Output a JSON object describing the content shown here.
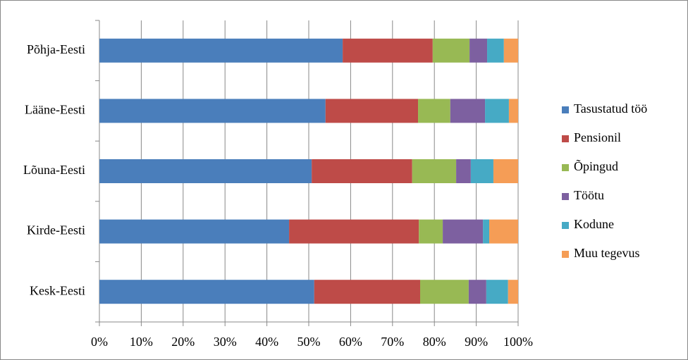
{
  "chart_data": {
    "type": "stacked-bar-horizontal",
    "categories": [
      "Põhja-Eesti",
      "Lääne-Eesti",
      "Lõuna-Eesti",
      "Kirde-Eesti",
      "Kesk-Eesti"
    ],
    "series": [
      {
        "name": "Tasustatud töö",
        "color": "#4a7ebb",
        "values": [
          58.1,
          54.0,
          50.7,
          45.3,
          51.3
        ]
      },
      {
        "name": "Pensionil",
        "color": "#be4b48",
        "values": [
          21.5,
          22.1,
          24.0,
          31.0,
          25.3
        ]
      },
      {
        "name": "Õpingud",
        "color": "#98b954",
        "values": [
          8.8,
          7.7,
          10.5,
          5.7,
          11.6
        ]
      },
      {
        "name": "Töötu",
        "color": "#7d60a0",
        "values": [
          4.2,
          8.3,
          3.5,
          9.6,
          4.2
        ]
      },
      {
        "name": "Kodune",
        "color": "#46aac5",
        "values": [
          4.0,
          5.7,
          5.4,
          1.5,
          5.2
        ]
      },
      {
        "name": "Muu tegevus",
        "color": "#f59d56",
        "values": [
          3.4,
          2.2,
          5.9,
          6.9,
          2.4
        ]
      }
    ],
    "xlim": [
      0,
      100
    ],
    "xticks": [
      {
        "value": 0,
        "label": "0%"
      },
      {
        "value": 10,
        "label": "10%"
      },
      {
        "value": 20,
        "label": "20%"
      },
      {
        "value": 30,
        "label": "30%"
      },
      {
        "value": 40,
        "label": "40%"
      },
      {
        "value": 50,
        "label": "50%"
      },
      {
        "value": 60,
        "label": "60%"
      },
      {
        "value": 70,
        "label": "70%"
      },
      {
        "value": 80,
        "label": "80%"
      },
      {
        "value": 90,
        "label": "90%"
      },
      {
        "value": 100,
        "label": "100%"
      }
    ],
    "grid": true,
    "legend": "right"
  }
}
